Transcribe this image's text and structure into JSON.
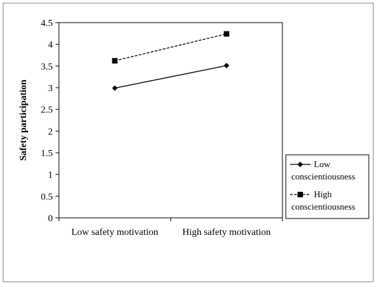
{
  "chart_data": {
    "type": "line",
    "categories": [
      "Low safety motivation",
      "High safety motivation"
    ],
    "series": [
      {
        "name": [
          "Low",
          "conscientiousness"
        ],
        "values": [
          2.99,
          3.51
        ],
        "marker": "diamond",
        "dash": "solid",
        "color": "#000000"
      },
      {
        "name": [
          "High",
          "conscientiousness"
        ],
        "values": [
          3.62,
          4.24
        ],
        "marker": "square",
        "dash": "dashed",
        "color": "#000000"
      }
    ],
    "title": "",
    "xlabel": "",
    "ylabel": "Safety participation",
    "ylim": [
      0,
      4.5
    ],
    "yticks": [
      "0",
      "0.5",
      "1",
      "1.5",
      "2",
      "2.5",
      "3",
      "3.5",
      "4",
      "4.5"
    ],
    "grid": false,
    "legend_position": "right"
  }
}
